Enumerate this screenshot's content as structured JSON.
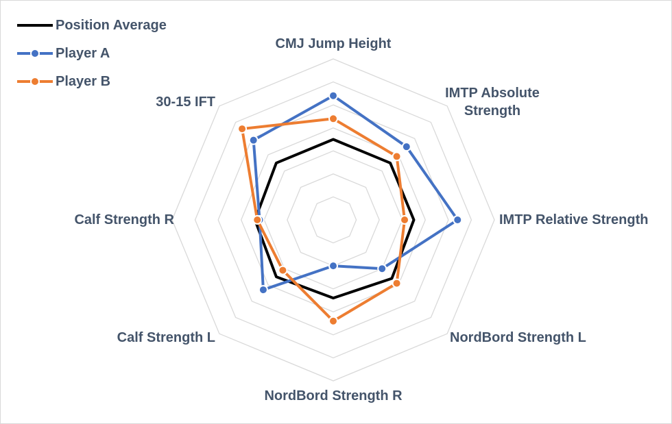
{
  "chart_data": {
    "type": "radar",
    "categories": [
      "CMJ Jump Height",
      "IMTP Absolute Strength",
      "IMTP Relative Strength",
      "NordBord Strength L",
      "NordBord Strength R",
      "Calf Strength L",
      "Calf Strength R",
      "30-15 IFT"
    ],
    "ylim": [
      0,
      7
    ],
    "yticks": [
      1,
      2,
      3,
      4,
      5,
      6,
      7
    ],
    "grid": true,
    "legend": "top-left",
    "series": [
      {
        "name": "Position Average",
        "color": "#000000",
        "markers": false,
        "values": [
          3.5,
          3.5,
          3.5,
          3.6,
          3.4,
          3.5,
          3.4,
          3.5
        ]
      },
      {
        "name": "Player A",
        "color": "#4472c4",
        "markers": true,
        "values": [
          5.4,
          4.5,
          5.4,
          3.0,
          2.0,
          4.3,
          3.2,
          4.9
        ]
      },
      {
        "name": "Player B",
        "color": "#ed7d31",
        "markers": true,
        "values": [
          4.4,
          3.9,
          3.1,
          3.9,
          4.4,
          3.1,
          3.3,
          5.6
        ]
      }
    ]
  }
}
